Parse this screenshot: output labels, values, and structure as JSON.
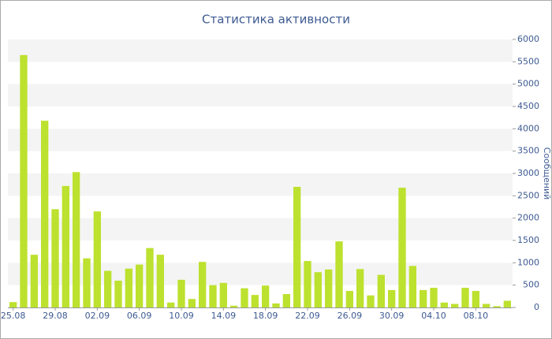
{
  "chart_data": {
    "type": "bar",
    "title": "Статистика активности",
    "y_axis_label": "Сообщений",
    "categories": [
      "25.08",
      null,
      null,
      null,
      "29.08",
      null,
      null,
      null,
      "02.09",
      null,
      null,
      null,
      "06.09",
      null,
      null,
      null,
      "10.09",
      null,
      null,
      null,
      "14.09",
      null,
      null,
      null,
      "18.09",
      null,
      null,
      null,
      "22.09",
      null,
      null,
      null,
      "26.09",
      null,
      null,
      null,
      "30.09",
      null,
      null,
      null,
      "04.10",
      null,
      null,
      null,
      "08.10",
      null,
      null,
      null
    ],
    "values": [
      120,
      5650,
      1180,
      4180,
      2200,
      2720,
      3030,
      1100,
      2150,
      820,
      600,
      870,
      960,
      1330,
      1180,
      110,
      620,
      190,
      1020,
      500,
      550,
      40,
      430,
      280,
      490,
      90,
      300,
      2700,
      1040,
      790,
      850,
      1480,
      370,
      860,
      270,
      730,
      390,
      2680,
      930,
      390,
      440,
      110,
      80,
      440,
      370,
      80,
      30,
      150
    ],
    "color": "#bde12f",
    "ylim": [
      0,
      6000
    ],
    "yticks": [
      0,
      500,
      1000,
      1500,
      2000,
      2500,
      3000,
      3500,
      4000,
      4500,
      5000,
      5500,
      6000
    ],
    "grid": true
  }
}
